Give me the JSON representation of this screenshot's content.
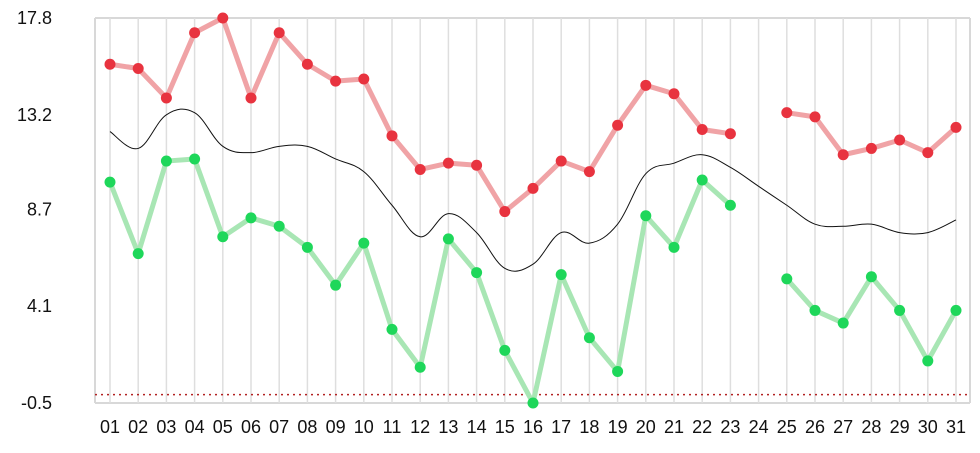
{
  "chart_data": {
    "type": "line",
    "title": "",
    "xlabel": "",
    "ylabel": "",
    "grid": true,
    "categories": [
      "01",
      "02",
      "03",
      "04",
      "05",
      "06",
      "07",
      "08",
      "09",
      "10",
      "11",
      "12",
      "13",
      "14",
      "15",
      "16",
      "17",
      "18",
      "19",
      "20",
      "21",
      "22",
      "23",
      "24",
      "25",
      "26",
      "27",
      "28",
      "29",
      "30",
      "31"
    ],
    "yticks": [
      "17.8",
      "13.2",
      "8.7",
      "4.1",
      "-0.5"
    ],
    "ylim": [
      -0.5,
      17.8
    ],
    "reference_line": {
      "value": -0.1,
      "color": "#b22222",
      "style": "dotted"
    },
    "series": [
      {
        "color": "#e8333f",
        "line_color": "#f0a3a6",
        "markers": true,
        "values": [
          15.6,
          15.4,
          14.0,
          17.1,
          17.8,
          14.0,
          17.1,
          15.6,
          14.8,
          14.9,
          12.2,
          10.6,
          10.9,
          10.8,
          8.6,
          9.7,
          11.0,
          10.5,
          12.7,
          14.6,
          14.2,
          12.5,
          12.3,
          null,
          13.3,
          13.1,
          11.3,
          11.6,
          12.0,
          11.4,
          12.6
        ]
      },
      {
        "color": "#1ed75a",
        "line_color": "#a8e6b4",
        "markers": true,
        "values": [
          10.0,
          6.6,
          11.0,
          11.1,
          7.4,
          8.3,
          7.9,
          6.9,
          5.1,
          7.1,
          3.0,
          1.2,
          7.3,
          5.7,
          2.0,
          -0.5,
          5.6,
          2.6,
          1.0,
          8.4,
          6.9,
          10.1,
          8.9,
          null,
          5.4,
          3.9,
          3.3,
          5.5,
          3.9,
          1.5,
          3.9
        ]
      },
      {
        "color": "#111111",
        "markers": false,
        "values": [
          12.4,
          11.6,
          13.2,
          13.3,
          11.7,
          11.4,
          11.7,
          11.7,
          11.1,
          10.5,
          8.9,
          7.4,
          8.5,
          7.6,
          5.9,
          6.1,
          7.6,
          7.1,
          8.0,
          10.4,
          10.9,
          11.3,
          10.7,
          9.8,
          8.9,
          8.0,
          7.9,
          8.0,
          7.6,
          7.6,
          8.2
        ]
      }
    ]
  }
}
